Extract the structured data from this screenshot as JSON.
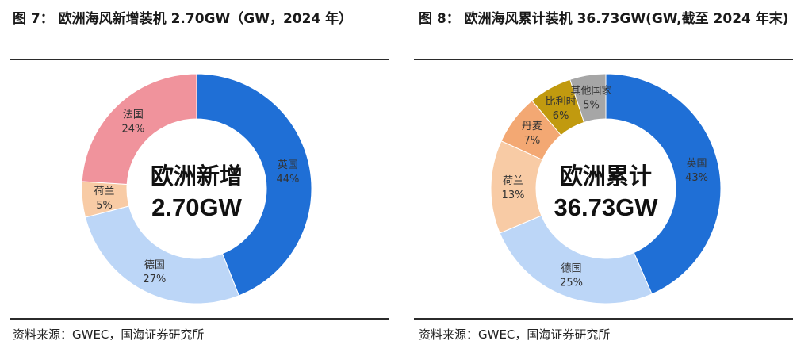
{
  "chart_data": [
    {
      "type": "pie",
      "style": "donut",
      "figure_label": "图 7：",
      "title": "欧洲海风新增装机 2.70GW（GW，2024 年）",
      "center_title": "欧洲新增",
      "center_value": "2.70GW",
      "categories": [
        "英国",
        "德国",
        "荷兰",
        "法国"
      ],
      "values": [
        44,
        27,
        5,
        24
      ],
      "value_labels": [
        "44%",
        "27%",
        "5%",
        "24%"
      ],
      "colors": [
        "#1f6fd6",
        "#bcd6f7",
        "#f8cba5",
        "#f0939c"
      ],
      "source": "资料来源：GWEC，国海证券研究所"
    },
    {
      "type": "pie",
      "style": "donut",
      "figure_label": "图 8：",
      "title": "欧洲海风累计装机 36.73GW(GW,截至 2024 年末)",
      "center_title": "欧洲累计",
      "center_value": "36.73GW",
      "categories": [
        "英国",
        "德国",
        "荷兰",
        "丹麦",
        "比利时",
        "其他国家"
      ],
      "values": [
        43,
        25,
        13,
        7,
        6,
        5
      ],
      "value_labels": [
        "43%",
        "25%",
        "13%",
        "7%",
        "6%",
        "5%"
      ],
      "colors": [
        "#1f6fd6",
        "#bcd6f7",
        "#f8cba5",
        "#f3a873",
        "#c19a0f",
        "#a6a6a6"
      ],
      "source": "资料来源：GWEC，国海证券研究所"
    }
  ]
}
